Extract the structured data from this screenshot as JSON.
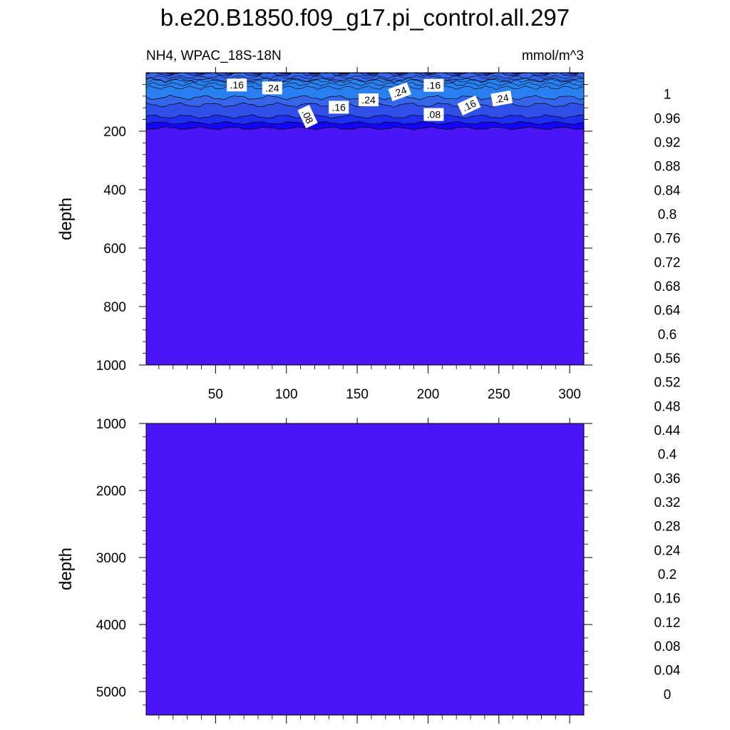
{
  "title": "b.e20.B1850.f09_g17.pi_control.all.297",
  "colors": {
    "levels": [
      "#7a24e6",
      "#4a16f5",
      "#1505f6",
      "#1f2ff2",
      "#2f4fe6",
      "#3566ea",
      "#2a7ff0",
      "#1f95f6",
      "#08aaf8",
      "#1fbdf6",
      "#5ac2f2",
      "#8ec8ec",
      "#b2dcf2",
      "#ffffcc",
      "#fff382",
      "#ffe050",
      "#ffcc2e",
      "#ffb00a",
      "#ff9500",
      "#ff7a00",
      "#ff5200",
      "#ff2a0a",
      "#f00000",
      "#e00000",
      "#cc1010",
      "#e65050",
      "#ffb0b0"
    ],
    "deep_fill": "#4a16f5",
    "band_008_016": "#1f2ff2",
    "band_016_020": "#2f4fe6",
    "band_020_024": "#3566ea",
    "band_024_028": "#2a7ff0",
    "band_004_008": "#1505f6"
  },
  "chart_data": [
    {
      "type": "contour",
      "panel": "upper",
      "subtitle_left": "NH4, WPAC_18S-18N",
      "subtitle_right": "mmol/m^3",
      "xlabel": "",
      "ylabel": "depth",
      "xlim": [
        1,
        310
      ],
      "ylim": [
        1000,
        0
      ],
      "x_ticks": [
        "50",
        "100",
        "150",
        "200",
        "250",
        "300"
      ],
      "y_ticks": [
        "200",
        "400",
        "600",
        "800",
        "1000"
      ],
      "x_tick_values": [
        50,
        100,
        150,
        200,
        250,
        300
      ],
      "y_tick_values": [
        200,
        400,
        600,
        800,
        1000
      ],
      "contour_labels": [
        {
          "text": ".16",
          "x": 65,
          "y": 42
        },
        {
          "text": ".24",
          "x": 90,
          "y": 52
        },
        {
          "text": ".08",
          "x": 115,
          "y": 150,
          "angle": 65
        },
        {
          "text": ".16",
          "x": 137,
          "y": 118
        },
        {
          "text": ".24",
          "x": 158,
          "y": 93
        },
        {
          "text": ".24",
          "x": 180,
          "y": 65,
          "angle": -20
        },
        {
          "text": ".16",
          "x": 204,
          "y": 43
        },
        {
          "text": ".08",
          "x": 204,
          "y": 143
        },
        {
          "text": ".16",
          "x": 229,
          "y": 112,
          "angle": -25
        },
        {
          "text": ".24",
          "x": 252,
          "y": 88,
          "angle": -10
        }
      ],
      "field_summary": {
        "surface_min": 0.08,
        "subsurface_max": 0.28,
        "max_depth_of_signal": 190,
        "value_below": 0.02
      }
    },
    {
      "type": "contour",
      "panel": "lower",
      "xlabel": "",
      "ylabel": "depth",
      "xlim": [
        1,
        310
      ],
      "ylim": [
        5350,
        1000
      ],
      "y_ticks": [
        "1000",
        "2000",
        "3000",
        "4000",
        "5000"
      ],
      "y_tick_values": [
        1000,
        2000,
        3000,
        4000,
        5000
      ],
      "field_summary": {
        "value": 0.02
      }
    }
  ],
  "colorbar": {
    "labels": [
      "0",
      "0.04",
      "0.08",
      "0.12",
      "0.16",
      "0.2",
      "0.24",
      "0.28",
      "0.32",
      "0.36",
      "0.4",
      "0.44",
      "0.48",
      "0.52",
      "0.56",
      "0.6",
      "0.64",
      "0.68",
      "0.72",
      "0.76",
      "0.8",
      "0.84",
      "0.88",
      "0.92",
      "0.96",
      "1"
    ]
  }
}
